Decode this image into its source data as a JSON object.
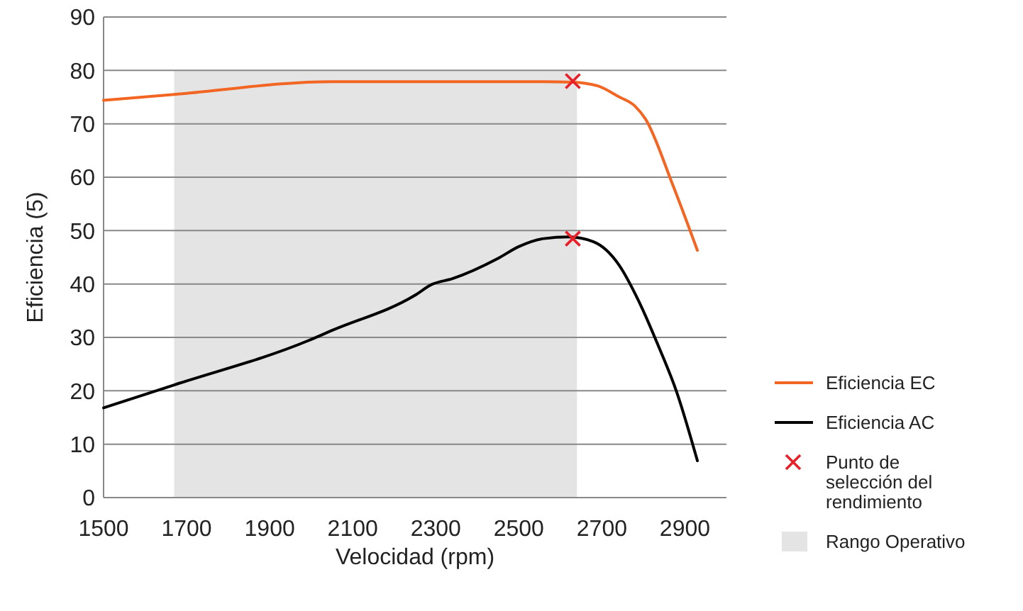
{
  "chart_data": {
    "type": "line",
    "xlabel": "Velocidad (rpm)",
    "ylabel": "Eficiencia (5)",
    "xlim": [
      1500,
      3000
    ],
    "xticks": [
      1500,
      1700,
      1900,
      2100,
      2300,
      2500,
      2700,
      2900
    ],
    "ylim": [
      0,
      90
    ],
    "yticks": [
      0,
      10,
      20,
      30,
      40,
      50,
      60,
      70,
      80,
      90
    ],
    "grid": "y",
    "legend": "right",
    "marker": "none",
    "series": [
      {
        "name": "Eficiencia EC",
        "color": "#f26522",
        "x": [
          1500,
          1670,
          2050,
          2560,
          2630,
          2690,
          2740,
          2780,
          2805,
          2870,
          2930
        ],
        "values": [
          74.4,
          75.5,
          77.9,
          77.9,
          77.8,
          77.1,
          75.1,
          73.3,
          70.9,
          58.7,
          46.3
        ]
      },
      {
        "name": "Eficiencia AC",
        "color": "#000000",
        "x": [
          1500,
          1670,
          1990,
          2050,
          2250,
          2290,
          2340,
          2450,
          2500,
          2560,
          2620,
          2680,
          2740,
          2790,
          2835,
          2880,
          2930
        ],
        "values": [
          16.8,
          21.1,
          29.3,
          31.3,
          37.9,
          39.9,
          41,
          44.8,
          47,
          48.5,
          48.8,
          47.9,
          43.7,
          36.6,
          28.6,
          19.8,
          6.9
        ]
      },
      {
        "name": "Punto de selección del rendimiento",
        "color": "#e8202a",
        "type": "scatter",
        "marker": "cross",
        "x": [
          2630,
          2630
        ],
        "values": [
          78,
          48.5
        ]
      },
      {
        "name": "Rango Operativo",
        "color": "#e4e4e4",
        "type": "area",
        "x": [
          1670,
          2640
        ],
        "values": [
          80,
          80
        ]
      }
    ]
  }
}
